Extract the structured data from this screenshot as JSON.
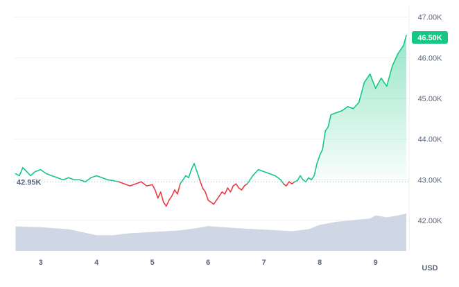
{
  "chart_data": {
    "type": "line",
    "title": "",
    "currency": "USD",
    "ylim": [
      41.25,
      47.25
    ],
    "y_ticks": [
      "47.00K",
      "46.00K",
      "45.00K",
      "44.00K",
      "43.00K",
      "42.00K"
    ],
    "y_tick_values": [
      47,
      46,
      45,
      44,
      43,
      42
    ],
    "x_ticks": [
      "3",
      "4",
      "5",
      "6",
      "7",
      "8",
      "9"
    ],
    "x_tick_values": [
      3,
      4,
      5,
      6,
      7,
      8,
      9
    ],
    "xlim": [
      2.52,
      9.6
    ],
    "baseline": {
      "value": 42.95,
      "label": "42.95K"
    },
    "current": {
      "value": 46.5,
      "label": "46.50K"
    },
    "colors": {
      "up": "#16c784",
      "down": "#ea3943",
      "volume": "#cfd6e4",
      "grid": "#eff2f5",
      "axis_text": "#58667e",
      "badge": "#16c784"
    },
    "price_series": {
      "x": [
        2.55,
        2.62,
        2.68,
        2.75,
        2.82,
        2.9,
        3.0,
        3.1,
        3.2,
        3.3,
        3.4,
        3.5,
        3.6,
        3.7,
        3.8,
        3.9,
        4.0,
        4.1,
        4.2,
        4.3,
        4.4,
        4.5,
        4.6,
        4.7,
        4.8,
        4.9,
        5.0,
        5.05,
        5.1,
        5.15,
        5.2,
        5.25,
        5.3,
        5.35,
        5.4,
        5.45,
        5.5,
        5.55,
        5.6,
        5.65,
        5.7,
        5.75,
        5.8,
        5.85,
        5.9,
        5.95,
        6.0,
        6.05,
        6.1,
        6.15,
        6.2,
        6.25,
        6.3,
        6.35,
        6.4,
        6.45,
        6.5,
        6.55,
        6.6,
        6.65,
        6.7,
        6.8,
        6.9,
        7.0,
        7.1,
        7.2,
        7.3,
        7.35,
        7.4,
        7.45,
        7.5,
        7.55,
        7.6,
        7.65,
        7.7,
        7.75,
        7.8,
        7.85,
        7.9,
        7.95,
        8.0,
        8.05,
        8.1,
        8.15,
        8.2,
        8.3,
        8.4,
        8.5,
        8.6,
        8.7,
        8.8,
        8.9,
        9.0,
        9.1,
        9.2,
        9.3,
        9.4,
        9.5,
        9.55
      ],
      "y": [
        43.15,
        43.1,
        43.3,
        43.2,
        43.1,
        43.2,
        43.25,
        43.15,
        43.1,
        43.05,
        43.0,
        43.05,
        43.0,
        43.0,
        42.95,
        43.05,
        43.1,
        43.05,
        43.0,
        42.98,
        42.95,
        42.9,
        42.85,
        42.9,
        42.95,
        42.85,
        42.88,
        42.75,
        42.55,
        42.7,
        42.45,
        42.35,
        42.5,
        42.6,
        42.75,
        42.65,
        42.9,
        43.0,
        43.1,
        43.05,
        43.25,
        43.4,
        43.2,
        43.0,
        42.8,
        42.7,
        42.5,
        42.45,
        42.4,
        42.5,
        42.6,
        42.7,
        42.65,
        42.8,
        42.7,
        42.85,
        42.9,
        42.8,
        42.75,
        42.85,
        42.9,
        43.1,
        43.25,
        43.2,
        43.15,
        43.1,
        43.0,
        42.9,
        42.85,
        42.95,
        42.9,
        42.95,
        42.98,
        43.1,
        43.0,
        42.95,
        43.05,
        43.0,
        43.1,
        43.4,
        43.6,
        43.75,
        44.2,
        44.3,
        44.6,
        44.65,
        44.7,
        44.8,
        44.75,
        44.9,
        45.4,
        45.6,
        45.25,
        45.5,
        45.3,
        45.8,
        46.1,
        46.3,
        46.55
      ]
    },
    "volume_series": {
      "x": [
        2.55,
        3.0,
        3.5,
        3.8,
        4.0,
        4.3,
        4.6,
        5.0,
        5.5,
        5.9,
        6.0,
        6.5,
        7.0,
        7.5,
        7.8,
        8.0,
        8.3,
        8.6,
        8.9,
        9.0,
        9.2,
        9.4,
        9.55
      ],
      "y": [
        0.62,
        0.6,
        0.55,
        0.46,
        0.4,
        0.4,
        0.45,
        0.48,
        0.52,
        0.6,
        0.63,
        0.58,
        0.54,
        0.5,
        0.55,
        0.66,
        0.74,
        0.78,
        0.82,
        0.9,
        0.85,
        0.9,
        0.95
      ]
    }
  }
}
